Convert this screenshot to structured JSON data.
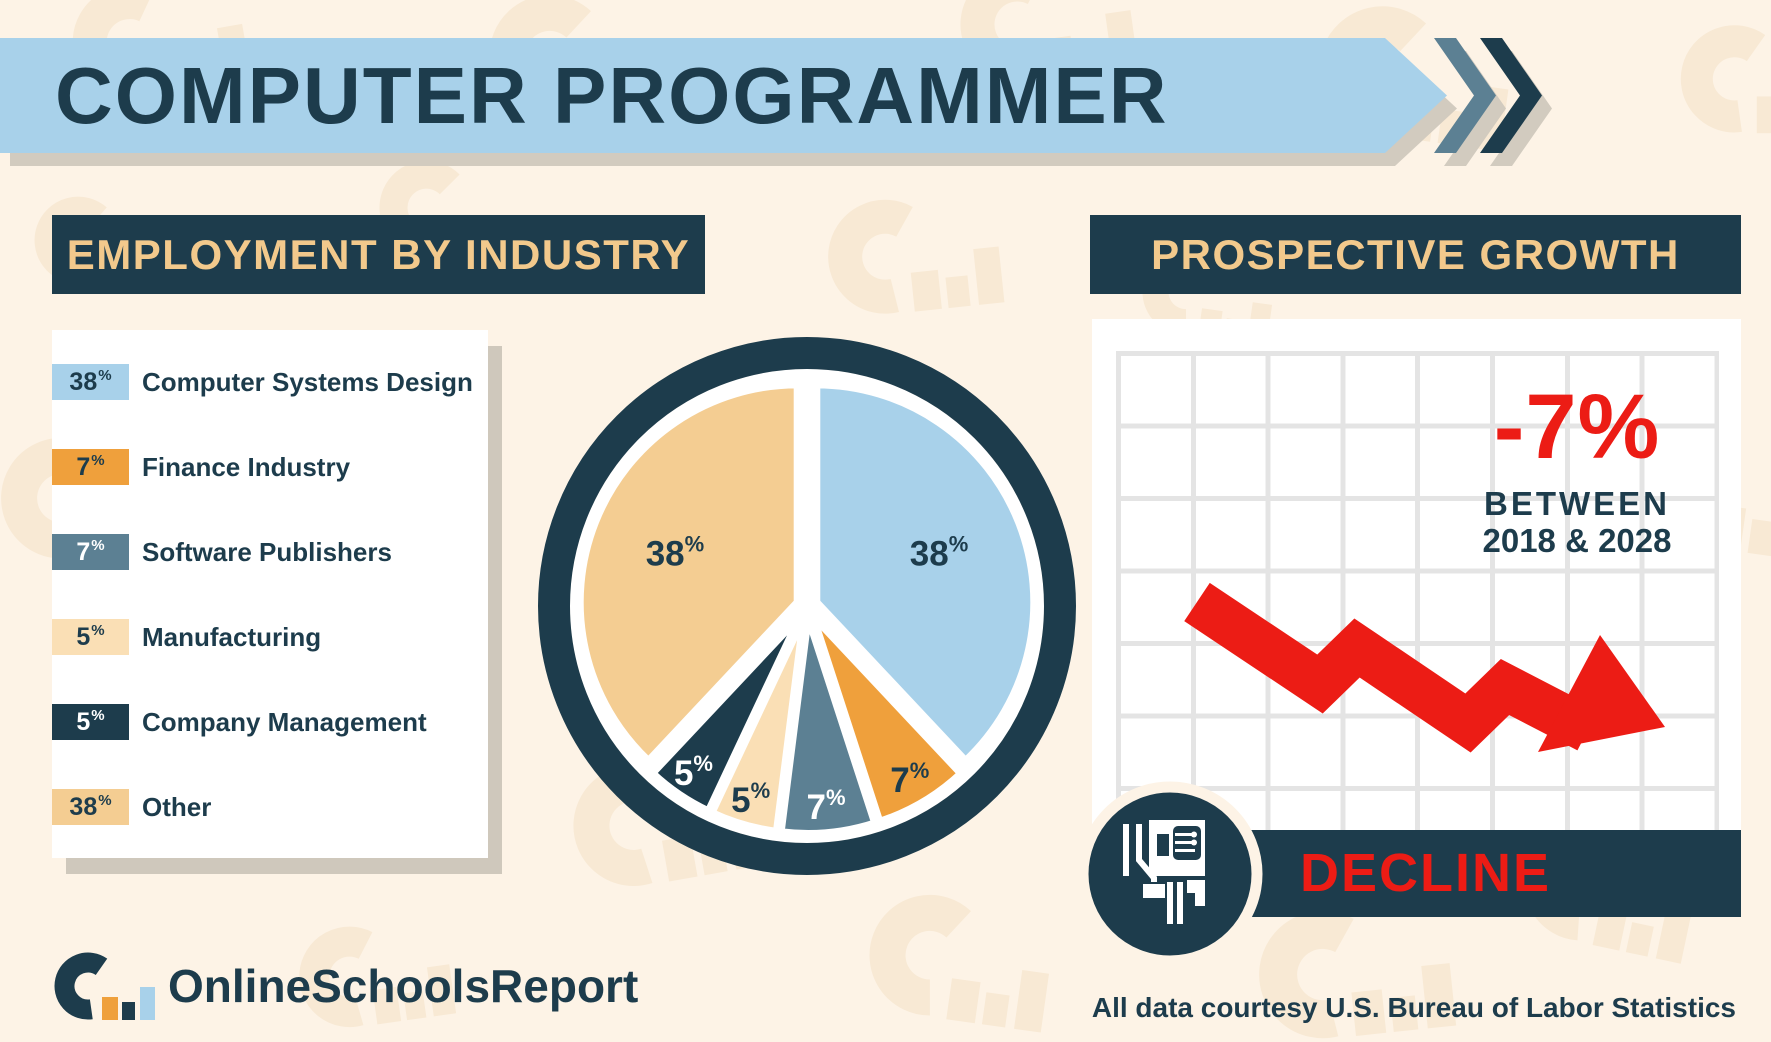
{
  "page_title": "COMPUTER PROGRAMMER",
  "employment": {
    "heading": "EMPLOYMENT BY INDUSTRY",
    "legend": [
      {
        "value": "38",
        "unit": "%",
        "label": "Computer Systems Design",
        "swatch": "#a8d1ea",
        "swatch_text": "#1d3c4c"
      },
      {
        "value": "7",
        "unit": "%",
        "label": "Finance Industry",
        "swatch": "#efa03c",
        "swatch_text": "#1d3c4c"
      },
      {
        "value": "7",
        "unit": "%",
        "label": "Software Publishers",
        "swatch": "#5c8093",
        "swatch_text": "#ffffff"
      },
      {
        "value": "5",
        "unit": "%",
        "label": "Manufacturing",
        "swatch": "#fadfb5",
        "swatch_text": "#1d3c4c"
      },
      {
        "value": "5",
        "unit": "%",
        "label": "Company Management",
        "swatch": "#1d3c4c",
        "swatch_text": "#ffffff"
      },
      {
        "value": "38",
        "unit": "%",
        "label": "Other",
        "swatch": "#f4cd92",
        "swatch_text": "#1d3c4c"
      }
    ]
  },
  "growth": {
    "heading": "PROSPECTIVE GROWTH",
    "value": "-7%",
    "period_line1": "BETWEEN",
    "period_line2": "2018 & 2028",
    "status": "DECLINE"
  },
  "footer": {
    "brand": "OnlineSchoolsReport",
    "source": "All data courtesy U.S. Bureau of Labor Statistics"
  },
  "chart_data": [
    {
      "type": "pie",
      "title": "EMPLOYMENT BY INDUSTRY",
      "unit": "%",
      "start_angle_deg": 0,
      "direction": "clockwise",
      "legend_position": "left",
      "slices": [
        {
          "label": "Computer Systems Design",
          "value": 38,
          "color": "#a8d1ea",
          "label_color": "#1d3c4c"
        },
        {
          "label": "Finance Industry",
          "value": 7,
          "color": "#efa03c",
          "label_color": "#1d3c4c"
        },
        {
          "label": "Software Publishers",
          "value": 7,
          "color": "#5c8093",
          "label_color": "#ffffff"
        },
        {
          "label": "Manufacturing",
          "value": 5,
          "color": "#fadfb5",
          "label_color": "#1d3c4c"
        },
        {
          "label": "Company Management",
          "value": 5,
          "color": "#1d3c4c",
          "label_color": "#ffffff"
        },
        {
          "label": "Other",
          "value": 38,
          "color": "#f4cd92",
          "label_color": "#1d3c4c"
        }
      ]
    },
    {
      "type": "line",
      "title": "PROSPECTIVE GROWTH",
      "change_pct": -7,
      "period": [
        "2018",
        "2028"
      ],
      "trend": "decline",
      "annotation": "-7% BETWEEN 2018 & 2028",
      "status_label": "DECLINE",
      "grid": true
    }
  ],
  "colors": {
    "background": "#fdf3e6",
    "pattern": "#f8e9d4",
    "dark_teal": "#1d3c4c",
    "light_blue": "#a8d1ea",
    "steel_blue": "#5c8093",
    "orange": "#efa03c",
    "tan": "#f4cd92",
    "light_tan": "#fadfb5",
    "red": "#ec1c15",
    "header_text": "#f2c98c",
    "card_shadow": "#cfc8bc",
    "grid_line": "#e4e4e4",
    "white": "#ffffff"
  }
}
